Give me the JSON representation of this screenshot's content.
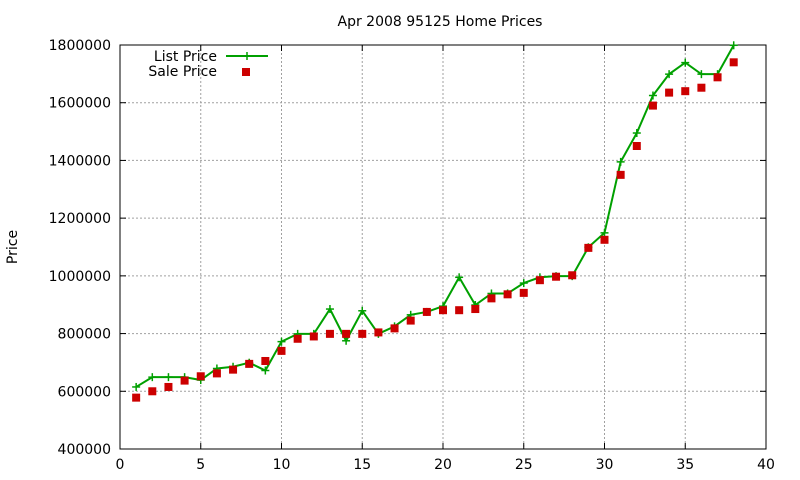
{
  "chart_data": {
    "type": "line",
    "title": "Apr 2008 95125 Home Prices",
    "xlabel": "",
    "ylabel": "Price",
    "xlim": [
      0,
      40
    ],
    "ylim": [
      400000,
      1800000
    ],
    "xticks": [
      0,
      5,
      10,
      15,
      20,
      25,
      30,
      35,
      40
    ],
    "yticks": [
      400000,
      600000,
      800000,
      1000000,
      1200000,
      1400000,
      1600000,
      1800000
    ],
    "grid": true,
    "legend_position": "top-left",
    "series": [
      {
        "name": "List Price",
        "style": "line-with-plus-markers",
        "color": "#00a000",
        "x": [
          1,
          2,
          3,
          4,
          5,
          6,
          7,
          8,
          9,
          10,
          11,
          12,
          13,
          14,
          15,
          16,
          17,
          18,
          19,
          20,
          21,
          22,
          23,
          24,
          25,
          26,
          27,
          28,
          29,
          30,
          31,
          32,
          33,
          34,
          35,
          36,
          37,
          38
        ],
        "values": [
          615000,
          649000,
          649000,
          649000,
          639000,
          679000,
          685000,
          699000,
          672000,
          772000,
          799000,
          799000,
          885000,
          775000,
          879000,
          799000,
          825000,
          865000,
          875000,
          895000,
          995000,
          899000,
          939000,
          939000,
          975000,
          995000,
          999000,
          999000,
          1099000,
          1149000,
          1395000,
          1495000,
          1625000,
          1699000,
          1739000,
          1699000,
          1699000,
          1799000
        ]
      },
      {
        "name": "Sale Price",
        "style": "square-markers",
        "color": "#cc0000",
        "x": [
          1,
          2,
          3,
          4,
          5,
          6,
          7,
          8,
          9,
          10,
          11,
          12,
          13,
          14,
          15,
          16,
          17,
          18,
          19,
          20,
          21,
          22,
          23,
          24,
          25,
          26,
          27,
          28,
          29,
          30,
          31,
          32,
          33,
          34,
          35,
          36,
          37,
          38
        ],
        "values": [
          578000,
          600000,
          615000,
          637000,
          652000,
          662000,
          675000,
          695000,
          705000,
          740000,
          782000,
          790000,
          799000,
          799000,
          799000,
          804000,
          818000,
          845000,
          875000,
          881000,
          881000,
          885000,
          922000,
          936000,
          941000,
          985000,
          997000,
          1002000,
          1097000,
          1125000,
          1350000,
          1450000,
          1590000,
          1635000,
          1640000,
          1652000,
          1688000,
          1740000
        ]
      }
    ]
  }
}
